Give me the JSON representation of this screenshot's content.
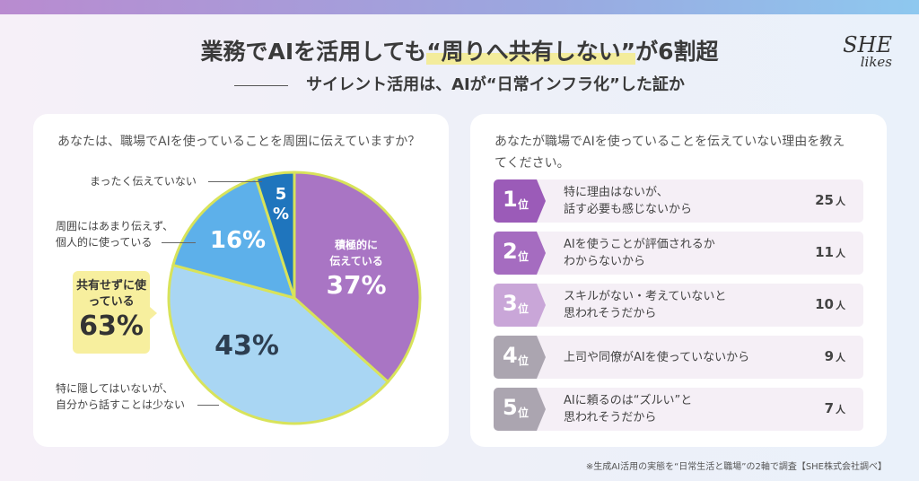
{
  "header": {
    "title_pre": "業務でAIを活用しても",
    "title_highlight": "“周りへ共有しない”",
    "title_post": "が6割超",
    "subtitle": "サイレント活用は、AIが“日常インフラ化”した証か",
    "logo_top": "SHE",
    "logo_bottom": "likes"
  },
  "chart_data": {
    "type": "pie",
    "title": "あなたは、職場でAIを使っていることを周囲に伝えていますか？",
    "slices": [
      {
        "label": "積極的に伝えている",
        "value": 37,
        "value_label": "37%",
        "color": "#a975c4"
      },
      {
        "label": "特に隠してはいないが、自分から話すことは少ない",
        "value": 43,
        "value_label": "43%",
        "color": "#a9d6f3"
      },
      {
        "label": "周囲にはあまり伝えず、個人的に使っている",
        "value": 16,
        "value_label": "16%",
        "color": "#5db0ea"
      },
      {
        "label": "まったく伝えていない",
        "value": 5,
        "value_label": "5%",
        "color": "#1f75bd"
      }
    ],
    "outline_color": "#d8e35a",
    "callout": {
      "label": "共有せずに使っている",
      "value_label": "63%"
    }
  },
  "left_labels": {
    "l0a": "積極的に",
    "l0b": "伝えている",
    "l1a": "特に隠してはいないが、",
    "l1b": "自分から話すことは少ない",
    "l2a": "周囲にはあまり伝えず、",
    "l2b": "個人的に使っている",
    "l3": "まったく伝えていない",
    "p5a": "5",
    "p5b": "%"
  },
  "ranking": {
    "question": "あなたが職場でAIを使っていることを伝えていない理由を教えてください。",
    "unit": "位",
    "count_unit": "人",
    "items": [
      {
        "rank": "1",
        "text": "特に理由はないが、\n話す必要も感じないから",
        "count": "25",
        "color": "#9b5bb8"
      },
      {
        "rank": "2",
        "text": "AIを使うことが評価されるか\nわからないから",
        "count": "11",
        "color": "#a56cc0"
      },
      {
        "rank": "3",
        "text": "スキルがない・考えていないと\n思われそうだから",
        "count": "10",
        "color": "#c9a6d8"
      },
      {
        "rank": "4",
        "text": "上司や同僚がAIを使っていないから",
        "count": "9",
        "color": "#aba5b0"
      },
      {
        "rank": "5",
        "text": "AIに頼るのは“ズルい”と\n思われそうだから",
        "count": "7",
        "color": "#aba5b0"
      }
    ]
  },
  "footnote": "※生成AI活用の実態を“日常生活と職場”の2軸で調査【SHE株式会社調べ】"
}
